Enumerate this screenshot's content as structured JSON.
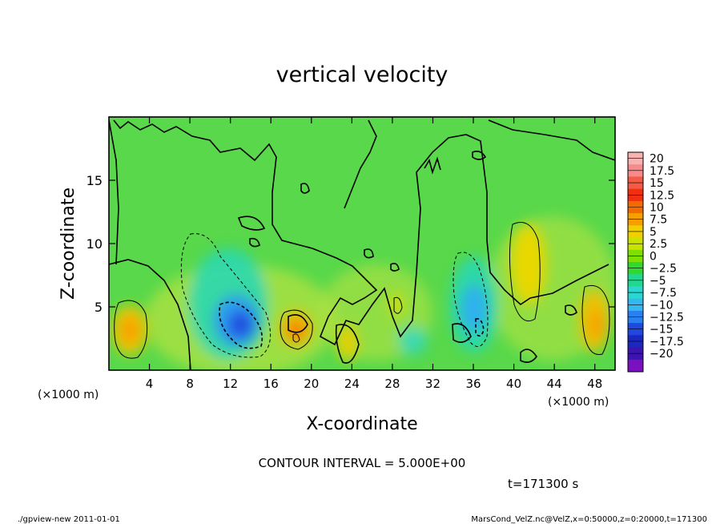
{
  "chart_data": {
    "type": "heatmap",
    "title": "vertical velocity",
    "xlabel": "X-coordinate",
    "ylabel": "Z-coordinate",
    "x_unit_note": "(×1000 m)",
    "y_unit_note": "(×1000 m)",
    "xlim": [
      0,
      50
    ],
    "ylim": [
      0,
      20
    ],
    "x_ticks": [
      4,
      8,
      12,
      16,
      20,
      24,
      28,
      32,
      36,
      40,
      44,
      48
    ],
    "y_ticks": [
      5,
      10,
      15
    ],
    "colorbar": {
      "labels": [
        "20",
        "17.5",
        "15",
        "12.5",
        "10",
        "7.5",
        "5",
        "2.5",
        "0",
        "−2.5",
        "−5",
        "−7.5",
        "−10",
        "−12.5",
        "−15",
        "−17.5",
        "−20"
      ],
      "colors": [
        "#f7b2b2",
        "#f78a8a",
        "#f45a44",
        "#f03010",
        "#f26a00",
        "#f5a000",
        "#f2d000",
        "#c8e400",
        "#7ee000",
        "#30d830",
        "#22d890",
        "#2ad8d0",
        "#35b8f0",
        "#2a80f0",
        "#1f48e0",
        "#1a28c0",
        "#3c14b0",
        "#7a10c0"
      ]
    },
    "features": [
      {
        "name": "updraft",
        "x": 2.8,
        "z": 3.2,
        "w": 7.5
      },
      {
        "name": "downdraft",
        "x": 12.8,
        "z": 3.8,
        "w": -10
      },
      {
        "name": "updraft",
        "x": 18.6,
        "z": 3.0,
        "w": 10
      },
      {
        "name": "updraft",
        "x": 23.6,
        "z": 2.5,
        "w": 7.5
      },
      {
        "name": "downdraft",
        "x": 36.2,
        "z": 4.5,
        "w": -7.5
      },
      {
        "name": "updraft",
        "x": 41.5,
        "z": 6.5,
        "w": 7.5
      },
      {
        "name": "updraft",
        "x": 48.0,
        "z": 3.5,
        "w": 7.5
      }
    ],
    "contour_interval": "CONTOUR INTERVAL = 5.000E+00",
    "time": "t=171300 s"
  },
  "footer": {
    "left": "./gpview-new  2011-01-01",
    "right": "MarsCond_VelZ.nc@VelZ,x=0:50000,z=0:20000,t=171300"
  }
}
